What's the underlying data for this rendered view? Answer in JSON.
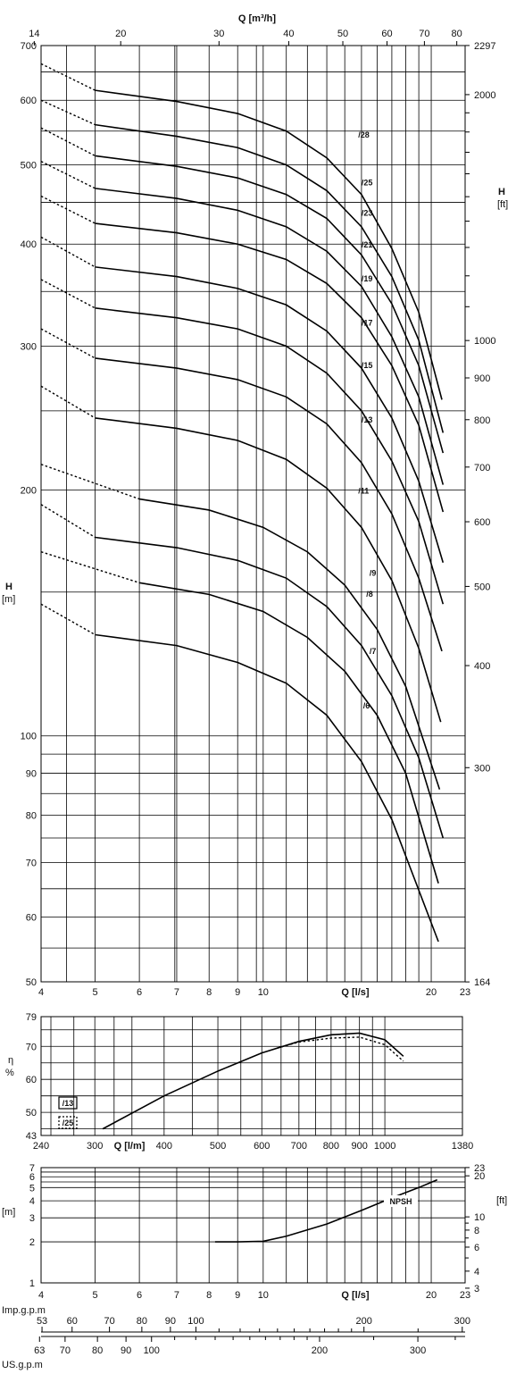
{
  "chart_data": [
    {
      "type": "line",
      "title": "",
      "xlabel": "Q [l/s]",
      "ylabel": "H [m]",
      "y2label": "H [ft]",
      "x2label": "Q [m³/h]",
      "x_scale": "log",
      "y_scale": "log",
      "xlim": [
        4,
        23
      ],
      "ylim": [
        50,
        700
      ],
      "x_ticks": [
        4,
        5,
        6,
        7,
        8,
        9,
        10,
        20,
        23
      ],
      "y_ticks": [
        50,
        60,
        70,
        80,
        90,
        100,
        200,
        300,
        400,
        500,
        600,
        700
      ],
      "x2_ticks": [
        14,
        20,
        30,
        40,
        50,
        60,
        70,
        80
      ],
      "y2_ticks": [
        164,
        300,
        400,
        500,
        600,
        700,
        800,
        900,
        1000,
        2000,
        2297
      ],
      "y2_tick_labels": [
        "164",
        "300",
        "400",
        "500",
        "600",
        "700",
        "800",
        "900",
        "1000",
        "2000",
        "2297"
      ],
      "series": [
        {
          "name": "/28",
          "dashed": [
            [
              4,
              665
            ],
            [
              5,
              617
            ]
          ],
          "solid": [
            [
              5,
              617
            ],
            [
              7,
              598
            ],
            [
              9,
              578
            ],
            [
              11,
              550
            ],
            [
              13,
              510
            ],
            [
              15,
              460
            ],
            [
              17,
              395
            ],
            [
              19,
              330
            ],
            [
              20.9,
              258
            ]
          ],
          "label_at": [
            14.8,
            540
          ]
        },
        {
          "name": "/25",
          "dashed": [
            [
              4,
              600
            ],
            [
              5,
              560
            ]
          ],
          "solid": [
            [
              5,
              560
            ],
            [
              7,
              542
            ],
            [
              9,
              525
            ],
            [
              11,
              500
            ],
            [
              13,
              465
            ],
            [
              15,
              420
            ],
            [
              17,
              365
            ],
            [
              19,
              305
            ],
            [
              21,
              235
            ]
          ],
          "label_at": [
            15.0,
            472
          ]
        },
        {
          "name": "/23",
          "dashed": [
            [
              4,
              555
            ],
            [
              5,
              513
            ]
          ],
          "solid": [
            [
              5,
              513
            ],
            [
              7,
              498
            ],
            [
              9,
              482
            ],
            [
              11,
              460
            ],
            [
              13,
              430
            ],
            [
              15,
              388
            ],
            [
              17,
              338
            ],
            [
              19,
              284
            ],
            [
              21,
              222
            ]
          ],
          "label_at": [
            15.0,
            433
          ]
        },
        {
          "name": "/21",
          "dashed": [
            [
              4,
              505
            ],
            [
              5,
              468
            ]
          ],
          "solid": [
            [
              5,
              468
            ],
            [
              7,
              455
            ],
            [
              9,
              440
            ],
            [
              11,
              420
            ],
            [
              13,
              392
            ],
            [
              15,
              355
            ],
            [
              17,
              308
            ],
            [
              19,
              260
            ],
            [
              21,
              203
            ]
          ],
          "label_at": [
            15.0,
            396
          ]
        },
        {
          "name": "/19",
          "dashed": [
            [
              4,
              458
            ],
            [
              5,
              424
            ]
          ],
          "solid": [
            [
              5,
              424
            ],
            [
              7,
              413
            ],
            [
              9,
              400
            ],
            [
              11,
              383
            ],
            [
              13,
              358
            ],
            [
              15,
              325
            ],
            [
              17,
              284
            ],
            [
              19,
              240
            ],
            [
              21,
              188
            ]
          ],
          "label_at": [
            15.0,
            360
          ]
        },
        {
          "name": "/17",
          "dashed": [
            [
              4,
              408
            ],
            [
              5,
              375
            ]
          ],
          "solid": [
            [
              5,
              375
            ],
            [
              7,
              365
            ],
            [
              9,
              353
            ],
            [
              11,
              337
            ],
            [
              13,
              313
            ],
            [
              15,
              282
            ],
            [
              17,
              245
            ],
            [
              19,
              205
            ],
            [
              21,
              163
            ]
          ],
          "label_at": [
            15.0,
            318
          ]
        },
        {
          "name": "/15",
          "dashed": [
            [
              4,
              362
            ],
            [
              5,
              334
            ]
          ],
          "solid": [
            [
              5,
              334
            ],
            [
              7,
              325
            ],
            [
              9,
              315
            ],
            [
              11,
              300
            ],
            [
              13,
              278
            ],
            [
              15,
              250
            ],
            [
              17,
              217
            ],
            [
              19,
              183
            ],
            [
              21,
              145
            ]
          ],
          "label_at": [
            15.0,
            282
          ]
        },
        {
          "name": "/13",
          "dashed": [
            [
              4,
              315
            ],
            [
              5,
              290
            ]
          ],
          "solid": [
            [
              5,
              290
            ],
            [
              7,
              282
            ],
            [
              9,
              273
            ],
            [
              11,
              260
            ],
            [
              13,
              241
            ],
            [
              15,
              216
            ],
            [
              17,
              187
            ],
            [
              19,
              156
            ],
            [
              20.9,
              127
            ]
          ],
          "label_at": [
            15.0,
            242
          ]
        },
        {
          "name": "/11",
          "dashed": [
            [
              4,
              268
            ],
            [
              5,
              245
            ]
          ],
          "solid": [
            [
              5,
              245
            ],
            [
              7,
              238
            ],
            [
              9,
              230
            ],
            [
              11,
              218
            ],
            [
              13,
              201
            ],
            [
              15,
              180
            ],
            [
              17,
              155
            ],
            [
              19,
              128
            ],
            [
              20.8,
              104
            ]
          ],
          "label_at": [
            14.8,
            198
          ]
        },
        {
          "name": "/9",
          "dashed": [
            [
              4,
              215
            ],
            [
              6,
              195
            ]
          ],
          "solid": [
            [
              6,
              195
            ],
            [
              8,
              189
            ],
            [
              10,
              180
            ],
            [
              12,
              168
            ],
            [
              14,
              153
            ],
            [
              16,
              135
            ],
            [
              18,
              115
            ],
            [
              20.7,
              86
            ]
          ],
          "label_at": [
            15.5,
            157
          ]
        },
        {
          "name": "/8",
          "dashed": [
            [
              4,
              192
            ],
            [
              5,
              175
            ]
          ],
          "solid": [
            [
              5,
              175
            ],
            [
              7,
              170
            ],
            [
              9,
              164
            ],
            [
              11,
              156
            ],
            [
              13,
              144
            ],
            [
              15,
              129
            ],
            [
              17,
              112
            ],
            [
              19,
              94
            ],
            [
              21,
              75
            ]
          ],
          "label_at": [
            15.3,
            148
          ]
        },
        {
          "name": "/7",
          "dashed": [
            [
              4,
              168
            ],
            [
              6,
              154
            ]
          ],
          "solid": [
            [
              6,
              154
            ],
            [
              8,
              149
            ],
            [
              10,
              142
            ],
            [
              12,
              132
            ],
            [
              14,
              120
            ],
            [
              16,
              106
            ],
            [
              18,
              90
            ],
            [
              20.6,
              66
            ]
          ],
          "label_at": [
            15.5,
            126
          ]
        },
        {
          "name": "/6",
          "dashed": [
            [
              4,
              145
            ],
            [
              5,
              133
            ]
          ],
          "solid": [
            [
              5,
              133
            ],
            [
              7,
              129
            ],
            [
              9,
              123
            ],
            [
              11,
              116
            ],
            [
              13,
              106
            ],
            [
              15,
              93
            ],
            [
              17,
              79
            ],
            [
              20.6,
              56
            ]
          ],
          "label_at": [
            15.1,
            108
          ]
        }
      ]
    },
    {
      "type": "line",
      "title": "",
      "xlabel": "Q [l/m]",
      "ylabel": "η %",
      "x_scale": "log",
      "xlim": [
        240,
        1380
      ],
      "ylim": [
        43,
        79
      ],
      "x_ticks": [
        240,
        300,
        400,
        500,
        600,
        700,
        800,
        900,
        1000,
        1380
      ],
      "y_ticks": [
        43,
        50,
        60,
        70,
        79
      ],
      "series": [
        {
          "name": "/13",
          "style": "solid",
          "points": [
            [
              310,
              45
            ],
            [
              400,
              55
            ],
            [
              500,
              62.5
            ],
            [
              600,
              68
            ],
            [
              700,
              71.5
            ],
            [
              800,
              73.5
            ],
            [
              900,
              74
            ],
            [
              1000,
              72
            ],
            [
              1080,
              67
            ]
          ]
        },
        {
          "name": "/25",
          "style": "dotted",
          "points": [
            [
              640,
              69.5
            ],
            [
              700,
              71.3
            ],
            [
              800,
              72.5
            ],
            [
              900,
              72.8
            ],
            [
              1000,
              70.5
            ],
            [
              1080,
              65.5
            ]
          ]
        }
      ]
    },
    {
      "type": "line",
      "title": "",
      "xlabel": "Q [l/s]",
      "ylabel": "[m]",
      "y2label": "[ft]",
      "x_scale": "log",
      "y_scale": "log",
      "xlim": [
        4,
        23
      ],
      "ylim": [
        1,
        7
      ],
      "x_ticks": [
        4,
        5,
        6,
        7,
        8,
        9,
        10,
        20,
        23
      ],
      "y_ticks": [
        1,
        2,
        3,
        4,
        5,
        6,
        7
      ],
      "y2_ticks": [
        3,
        4,
        6,
        8,
        10,
        20,
        23
      ],
      "series": [
        {
          "name": "NPSH",
          "points": [
            [
              8.2,
              2.0
            ],
            [
              9,
              2.0
            ],
            [
              10,
              2.02
            ],
            [
              11,
              2.2
            ],
            [
              13,
              2.7
            ],
            [
              15,
              3.4
            ],
            [
              17,
              4.2
            ],
            [
              19,
              5.0
            ],
            [
              20.5,
              5.7
            ]
          ]
        }
      ]
    }
  ],
  "flow_scales": {
    "imp": {
      "label": "Imp.g.p.m",
      "ticks": [
        53,
        60,
        70,
        80,
        90,
        100,
        200,
        300
      ]
    },
    "us": {
      "label": "US.g.p.m",
      "ticks": [
        63,
        70,
        80,
        90,
        100,
        200,
        300
      ]
    }
  }
}
